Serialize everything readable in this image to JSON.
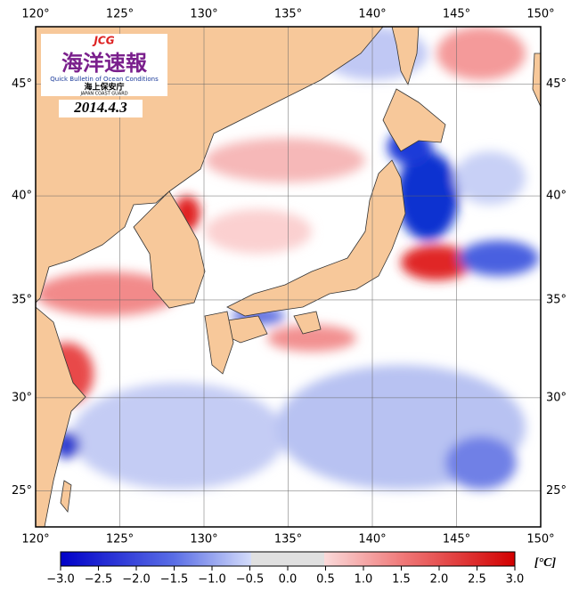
{
  "map": {
    "lon_range": [
      120,
      150
    ],
    "lat_range": [
      23,
      47.4
    ],
    "lon_ticks": [
      {
        "value": 120,
        "label": "120°"
      },
      {
        "value": 125,
        "label": "125°"
      },
      {
        "value": 130,
        "label": "130°"
      },
      {
        "value": 135,
        "label": "135°"
      },
      {
        "value": 140,
        "label": "140°"
      },
      {
        "value": 145,
        "label": "145°"
      },
      {
        "value": 150,
        "label": "150°"
      }
    ],
    "lat_ticks": [
      {
        "value": 25,
        "label": "25°"
      },
      {
        "value": 30,
        "label": "30°"
      },
      {
        "value": 35,
        "label": "35°"
      },
      {
        "value": 40,
        "label": "40°"
      },
      {
        "value": 45,
        "label": "45°"
      }
    ]
  },
  "logo": {
    "abbr": "JCG",
    "title": "海洋速報",
    "subtitle": "Quick Bulletin of Ocean Conditions",
    "agency": "海上保安庁",
    "agency_en": "JAPAN COAST GUARD"
  },
  "date": "2014.4.3",
  "colorbar": {
    "range": [
      -3,
      3
    ],
    "unit": "[°C]",
    "ticks": [
      {
        "value": -3,
        "label": "−3.0"
      },
      {
        "value": -2.5,
        "label": "−2.5"
      },
      {
        "value": -2,
        "label": "−2.0"
      },
      {
        "value": -1.5,
        "label": "−1.5"
      },
      {
        "value": -1,
        "label": "−1.0"
      },
      {
        "value": -0.5,
        "label": "−0.5"
      },
      {
        "value": 0,
        "label": "0.0"
      },
      {
        "value": 0.5,
        "label": "0.5"
      },
      {
        "value": 1,
        "label": "1.0"
      },
      {
        "value": 1.5,
        "label": "1.5"
      },
      {
        "value": 2,
        "label": "2.0"
      },
      {
        "value": 2.5,
        "label": "2.5"
      },
      {
        "value": 3,
        "label": "3.0"
      }
    ]
  }
}
